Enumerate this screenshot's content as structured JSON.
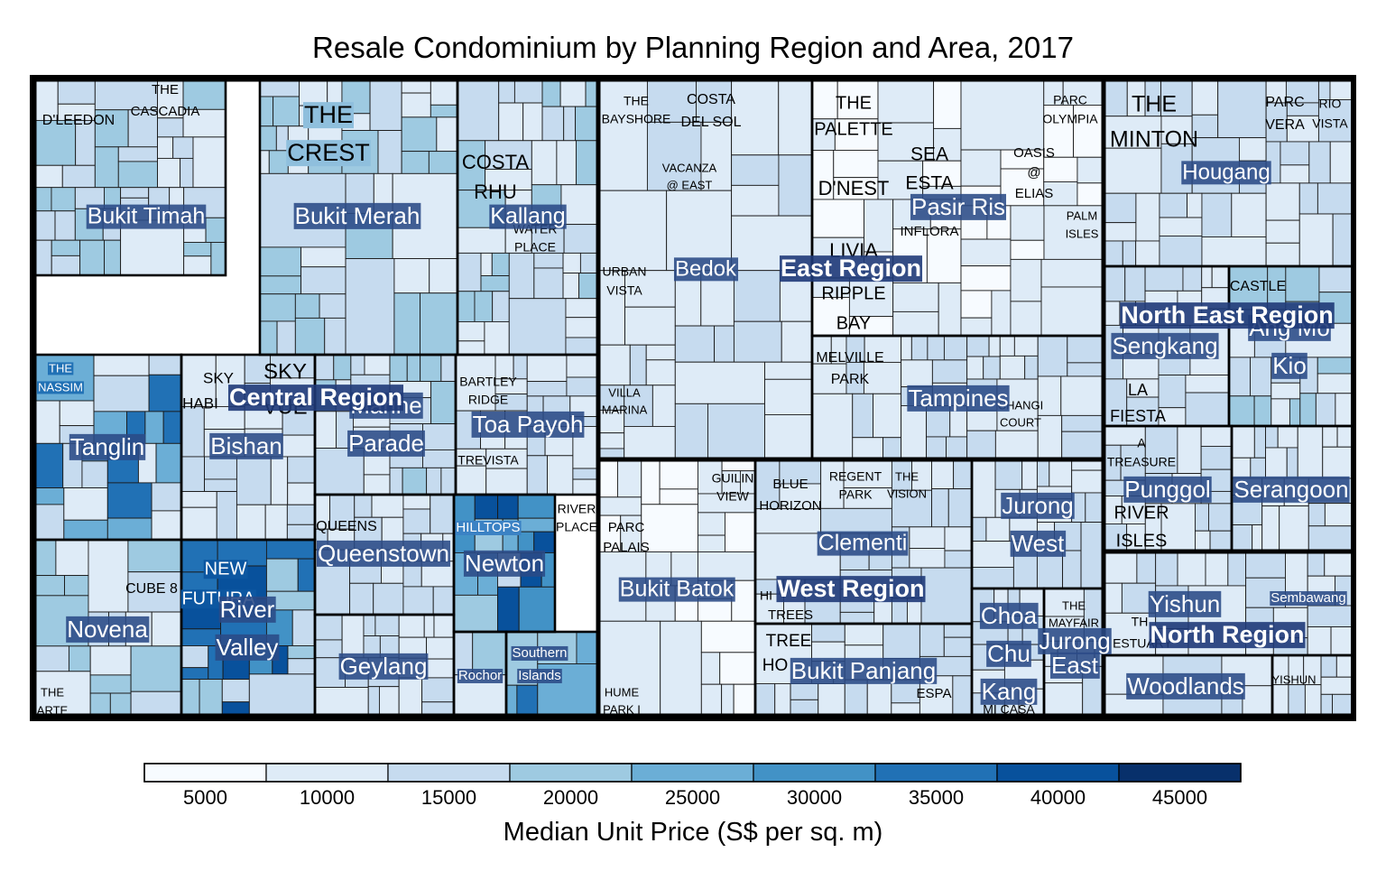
{
  "chart_data": {
    "type": "treemap",
    "title": "Resale Condominium by Planning Region and Area, 2017",
    "legend": {
      "title": "Median Unit Price (S$ per sq. m)",
      "ticks": [
        5000,
        10000,
        15000,
        20000,
        25000,
        30000,
        35000,
        40000,
        45000
      ],
      "bins": [
        2500,
        7500,
        12500,
        17500,
        22500,
        27500,
        32500,
        37500,
        42500,
        47500
      ],
      "placement": "bottom"
    },
    "palette": [
      "#f7fbff",
      "#deebf7",
      "#c6dbef",
      "#9ecae1",
      "#6baed6",
      "#4292c6",
      "#2171b5",
      "#08519c",
      "#08306b"
    ],
    "regions": [
      "Central Region",
      "East Region",
      "North East Region",
      "West Region",
      "North Region"
    ],
    "areas": [
      {
        "name": "Bukit Timah",
        "region": "Central Region"
      },
      {
        "name": "Bukit Merah",
        "region": "Central Region"
      },
      {
        "name": "Kallang",
        "region": "Central Region"
      },
      {
        "name": "Tanglin",
        "region": "Central Region"
      },
      {
        "name": "Bishan",
        "region": "Central Region"
      },
      {
        "name": "Marine Parade",
        "region": "Central Region"
      },
      {
        "name": "Toa Payoh",
        "region": "Central Region"
      },
      {
        "name": "Queenstown",
        "region": "Central Region"
      },
      {
        "name": "Newton",
        "region": "Central Region"
      },
      {
        "name": "Novena",
        "region": "Central Region"
      },
      {
        "name": "River Valley",
        "region": "Central Region"
      },
      {
        "name": "Geylang",
        "region": "Central Region"
      },
      {
        "name": "Rochor",
        "region": "Central Region"
      },
      {
        "name": "Southern Islands",
        "region": "Central Region"
      },
      {
        "name": "Bedok",
        "region": "East Region"
      },
      {
        "name": "Pasir Ris",
        "region": "East Region"
      },
      {
        "name": "Tampines",
        "region": "East Region"
      },
      {
        "name": "Hougang",
        "region": "North East Region"
      },
      {
        "name": "Sengkang",
        "region": "North East Region"
      },
      {
        "name": "Ang Mo Kio",
        "region": "North East Region"
      },
      {
        "name": "Punggol",
        "region": "North East Region"
      },
      {
        "name": "Serangoon",
        "region": "North East Region"
      },
      {
        "name": "Bukit Batok",
        "region": "West Region"
      },
      {
        "name": "Clementi",
        "region": "West Region"
      },
      {
        "name": "Jurong West",
        "region": "West Region"
      },
      {
        "name": "Bukit Panjang",
        "region": "West Region"
      },
      {
        "name": "Choa Chu Kang",
        "region": "West Region"
      },
      {
        "name": "Jurong East",
        "region": "West Region"
      },
      {
        "name": "Yishun",
        "region": "North Region"
      },
      {
        "name": "Woodlands",
        "region": "North Region"
      },
      {
        "name": "Sembawang",
        "region": "North Region"
      }
    ],
    "projects": [
      "D'LEEDON",
      "THE CASCADIA",
      "THE CREST",
      "COSTA RHU",
      "WATER PLACE",
      "THE NASSIM",
      "SKY HABITAT",
      "SKY VUE",
      "BARTLEY RIDGE",
      "TREVISTA",
      "QUEENS",
      "HILLTOPS",
      "RIVER PLACE",
      "CUBE 8",
      "NEW FUTURA",
      "THE ARTE",
      "THE BAYSHORE",
      "COSTA DEL SOL",
      "VACANZA @ EAST",
      "URBAN VISTA",
      "VILLA MARINA",
      "THE PALETTE",
      "D'NEST",
      "LIVIA",
      "RIPPLE BAY",
      "SEA ESTA",
      "OASIS @ ELIAS",
      "INFLORA",
      "PARC OLYMPIA",
      "PALM ISLES",
      "MELVILLE PARK",
      "CHANGI COURT",
      "THE MINTON",
      "PARC VERA",
      "RIO VISTA",
      "CASTLE",
      "LA FIESTA",
      "A TREASURE TROVE",
      "RIVER ISLES",
      "PARC PALAIS",
      "GUILIN VIEW",
      "BLUE HORIZON",
      "REGENT PARK",
      "THE VISION",
      "HUME PARK I",
      "HILLION",
      "TREE HOUSE",
      "ESPA",
      "MI CASA",
      "THE MAYFAIR",
      "THE ESTUARY",
      "YISHUN"
    ]
  }
}
